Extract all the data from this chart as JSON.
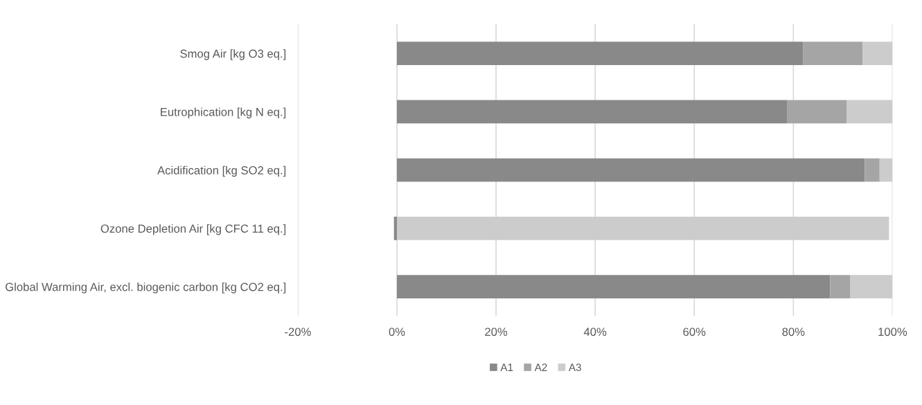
{
  "chart_data": {
    "type": "bar",
    "orientation": "horizontal",
    "stacked": true,
    "categories": [
      "Smog Air [kg O3 eq.]",
      "Eutrophication [kg N eq.]",
      "Acidification [kg SO2 eq.]",
      "Ozone Depletion Air [kg CFC 11 eq.]",
      "Global Warming Air, excl. biogenic carbon [kg CO2 eq.]"
    ],
    "series": [
      {
        "name": "A1",
        "color": "#898989",
        "values": [
          82.0,
          78.7,
          94.4,
          -0.6,
          87.4
        ]
      },
      {
        "name": "A2",
        "color": "#a5a5a5",
        "values": [
          12.0,
          12.1,
          3.0,
          0,
          4.1
        ]
      },
      {
        "name": "A3",
        "color": "#cccccc",
        "values": [
          6.0,
          9.2,
          2.6,
          99.3,
          8.5
        ]
      }
    ],
    "xlim": [
      -20,
      100
    ],
    "xticks": [
      {
        "value": -20,
        "label": "-20%"
      },
      {
        "value": 0,
        "label": "0%"
      },
      {
        "value": 20,
        "label": "20%"
      },
      {
        "value": 40,
        "label": "40%"
      },
      {
        "value": 60,
        "label": "60%"
      },
      {
        "value": 80,
        "label": "80%"
      },
      {
        "value": 100,
        "label": "100%"
      }
    ],
    "grid": "x",
    "legend": "bottom"
  }
}
